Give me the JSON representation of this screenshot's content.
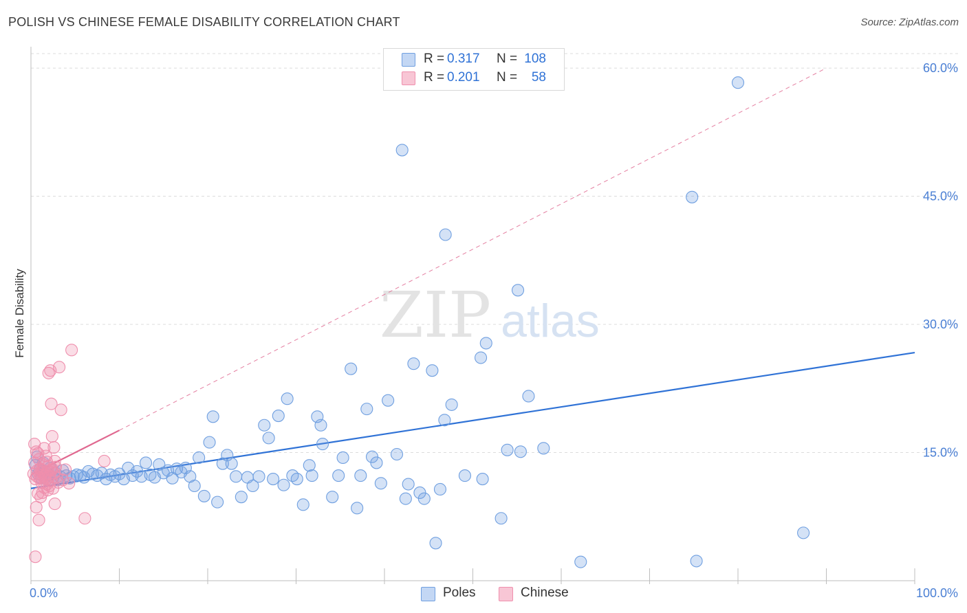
{
  "title": "POLISH VS CHINESE FEMALE DISABILITY CORRELATION CHART",
  "source": "Source: ZipAtlas.com",
  "watermark": {
    "zip": "ZIP",
    "atlas": "atlas"
  },
  "legend_top": [
    {
      "r_label": "R =",
      "r_value": "0.317",
      "n_label": "N =",
      "n_value": "108",
      "color": "#6f9fe0"
    },
    {
      "r_label": "R =",
      "r_value": "0.201",
      "n_label": "N =",
      "n_value": "58",
      "color": "#ef8fad"
    }
  ],
  "legend_bottom": [
    {
      "label": "Poles",
      "color": "#6f9fe0"
    },
    {
      "label": "Chinese",
      "color": "#ef8fad"
    }
  ],
  "chart_data": {
    "type": "scatter",
    "ylabel": "Female Disability",
    "xlim": [
      0,
      100
    ],
    "ylim": [
      0,
      62.5
    ],
    "x_tick_labels": [
      "0.0%",
      "100.0%"
    ],
    "y_ticks": [
      15,
      30,
      45,
      60
    ],
    "y_tick_labels": [
      "15.0%",
      "30.0%",
      "45.0%",
      "60.0%"
    ],
    "grid": true,
    "legend_position": "top-center",
    "colors": {
      "poles": "#6f9fe0",
      "poles_line": "#2f72d6",
      "chinese": "#ef8fad",
      "chinese_line": "#e06890",
      "axis_text": "#4a7fd4"
    },
    "series": [
      {
        "name": "Poles",
        "points": [
          [
            0.5,
            13.5
          ],
          [
            0.7,
            14.5
          ],
          [
            0.8,
            12.5
          ],
          [
            1.0,
            13.0
          ],
          [
            1.2,
            12.0
          ],
          [
            1.4,
            13.8
          ],
          [
            1.6,
            12.8
          ],
          [
            1.8,
            11.9
          ],
          [
            2.0,
            12.4
          ],
          [
            2.2,
            13.2
          ],
          [
            2.5,
            12.1
          ],
          [
            2.8,
            12.6
          ],
          [
            3.0,
            11.8
          ],
          [
            3.3,
            12.2
          ],
          [
            3.6,
            12.9
          ],
          [
            4.0,
            12.3
          ],
          [
            4.4,
            12.0
          ],
          [
            4.8,
            12.2
          ],
          [
            5.2,
            12.4
          ],
          [
            5.6,
            12.3
          ],
          [
            6.0,
            12.1
          ],
          [
            6.5,
            12.8
          ],
          [
            7.0,
            12.5
          ],
          [
            7.5,
            12.3
          ],
          [
            8.0,
            12.6
          ],
          [
            8.5,
            11.9
          ],
          [
            9.0,
            12.4
          ],
          [
            9.5,
            12.2
          ],
          [
            10.0,
            12.5
          ],
          [
            10.5,
            11.9
          ],
          [
            11.0,
            13.2
          ],
          [
            11.5,
            12.3
          ],
          [
            12.0,
            12.8
          ],
          [
            12.5,
            12.2
          ],
          [
            13.0,
            13.8
          ],
          [
            13.5,
            12.4
          ],
          [
            14.0,
            12.1
          ],
          [
            14.5,
            13.6
          ],
          [
            15.0,
            12.6
          ],
          [
            15.5,
            12.9
          ],
          [
            16.0,
            12.0
          ],
          [
            16.5,
            13.1
          ],
          [
            17.0,
            12.7
          ],
          [
            17.5,
            13.2
          ],
          [
            18.0,
            12.2
          ],
          [
            18.5,
            11.1
          ],
          [
            19.0,
            14.4
          ],
          [
            19.6,
            9.9
          ],
          [
            20.2,
            16.2
          ],
          [
            20.6,
            19.2
          ],
          [
            21.1,
            9.2
          ],
          [
            21.7,
            13.7
          ],
          [
            22.2,
            14.7
          ],
          [
            22.7,
            13.7
          ],
          [
            23.2,
            12.2
          ],
          [
            23.8,
            9.8
          ],
          [
            24.5,
            12.1
          ],
          [
            25.1,
            11.1
          ],
          [
            25.8,
            12.2
          ],
          [
            26.4,
            18.2
          ],
          [
            26.9,
            16.7
          ],
          [
            27.4,
            11.9
          ],
          [
            28.0,
            19.3
          ],
          [
            28.6,
            11.2
          ],
          [
            29.0,
            21.3
          ],
          [
            29.6,
            12.3
          ],
          [
            30.1,
            11.9
          ],
          [
            30.8,
            8.9
          ],
          [
            31.5,
            13.5
          ],
          [
            31.8,
            12.3
          ],
          [
            32.4,
            19.2
          ],
          [
            32.8,
            18.2
          ],
          [
            33.0,
            16.0
          ],
          [
            34.1,
            9.8
          ],
          [
            34.8,
            12.3
          ],
          [
            35.3,
            14.4
          ],
          [
            36.2,
            24.8
          ],
          [
            36.9,
            8.5
          ],
          [
            37.3,
            12.3
          ],
          [
            38.0,
            20.1
          ],
          [
            38.6,
            14.5
          ],
          [
            39.1,
            13.8
          ],
          [
            39.6,
            11.4
          ],
          [
            40.4,
            21.1
          ],
          [
            41.4,
            14.8
          ],
          [
            42.0,
            50.4
          ],
          [
            42.4,
            9.6
          ],
          [
            42.7,
            11.3
          ],
          [
            43.3,
            25.4
          ],
          [
            44.0,
            10.3
          ],
          [
            44.5,
            9.6
          ],
          [
            45.4,
            24.6
          ],
          [
            45.8,
            4.4
          ],
          [
            46.3,
            10.7
          ],
          [
            46.8,
            18.8
          ],
          [
            46.9,
            40.5
          ],
          [
            47.6,
            20.6
          ],
          [
            49.1,
            12.3
          ],
          [
            50.9,
            26.1
          ],
          [
            51.1,
            11.9
          ],
          [
            51.5,
            27.8
          ],
          [
            53.2,
            7.3
          ],
          [
            53.9,
            15.3
          ],
          [
            55.1,
            34.0
          ],
          [
            55.4,
            15.1
          ],
          [
            56.3,
            21.6
          ],
          [
            58.0,
            15.5
          ],
          [
            62.2,
            2.2
          ],
          [
            74.8,
            44.9
          ],
          [
            75.3,
            2.3
          ],
          [
            80.0,
            58.3
          ],
          [
            87.4,
            5.6
          ]
        ],
        "trend": {
          "x0": 0,
          "y0": 10.8,
          "x1": 100,
          "y1": 26.7
        }
      },
      {
        "name": "Chinese",
        "points": [
          [
            0.3,
            12.5
          ],
          [
            0.4,
            13.8
          ],
          [
            0.5,
            11.9
          ],
          [
            0.6,
            15.1
          ],
          [
            0.7,
            12.9
          ],
          [
            0.8,
            10.2
          ],
          [
            0.9,
            14.2
          ],
          [
            1.0,
            13.1
          ],
          [
            1.1,
            12.4
          ],
          [
            1.2,
            11.5
          ],
          [
            1.3,
            12.7
          ],
          [
            1.4,
            13.6
          ],
          [
            1.5,
            10.9
          ],
          [
            1.6,
            12.0
          ],
          [
            1.7,
            14.6
          ],
          [
            1.8,
            11.3
          ],
          [
            1.9,
            12.8
          ],
          [
            2.0,
            13.4
          ],
          [
            2.1,
            12.2
          ],
          [
            2.2,
            11.7
          ],
          [
            2.3,
            12.9
          ],
          [
            2.4,
            13.1
          ],
          [
            2.5,
            10.8
          ],
          [
            2.6,
            12.6
          ],
          [
            2.7,
            14.0
          ],
          [
            2.8,
            13.3
          ],
          [
            0.6,
            8.6
          ],
          [
            0.9,
            7.1
          ],
          [
            1.1,
            9.8
          ],
          [
            1.3,
            10.3
          ],
          [
            1.5,
            15.5
          ],
          [
            1.7,
            12.5
          ],
          [
            2.0,
            24.3
          ],
          [
            2.2,
            24.6
          ],
          [
            2.3,
            20.7
          ],
          [
            2.4,
            16.9
          ],
          [
            2.6,
            15.6
          ],
          [
            2.7,
            9.0
          ],
          [
            3.2,
            25.0
          ],
          [
            3.4,
            20.0
          ],
          [
            3.6,
            11.8
          ],
          [
            3.9,
            13.0
          ],
          [
            4.3,
            11.4
          ],
          [
            4.6,
            27.0
          ],
          [
            6.1,
            7.3
          ],
          [
            8.3,
            14.0
          ],
          [
            0.5,
            2.8
          ],
          [
            1.0,
            12.0
          ],
          [
            1.8,
            13.9
          ],
          [
            2.1,
            11.1
          ],
          [
            0.4,
            16.0
          ],
          [
            0.8,
            14.9
          ],
          [
            1.2,
            13.0
          ],
          [
            1.6,
            12.3
          ],
          [
            2.9,
            12.1
          ],
          [
            3.1,
            11.5
          ],
          [
            0.7,
            12.2
          ],
          [
            1.9,
            10.6
          ]
        ],
        "trend": {
          "x0": 0,
          "y0": 12.4,
          "x1": 10,
          "y1": 17.6
        },
        "trend_dashed": {
          "x0": 10,
          "y0": 17.6,
          "x1": 90,
          "y1": 60.0
        }
      }
    ]
  }
}
